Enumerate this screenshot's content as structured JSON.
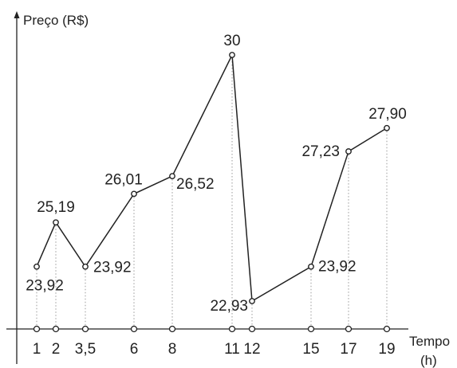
{
  "chart_data": {
    "type": "line",
    "ylabel": "Preço (R$)",
    "xlabel_line1": "Tempo",
    "xlabel_line2": "(h)",
    "x_tick_labels": [
      "1",
      "2",
      "3,5",
      "6",
      "8",
      "11",
      "12",
      "15",
      "17",
      "19"
    ],
    "x": [
      1,
      2,
      3.5,
      6,
      8,
      11,
      12,
      15,
      17,
      19
    ],
    "values": [
      23.92,
      25.19,
      23.92,
      26.01,
      26.52,
      30,
      22.93,
      23.92,
      27.23,
      27.9
    ],
    "value_labels": [
      "23,92",
      "25,19",
      "23,92",
      "26,01",
      "26,52",
      "30",
      "22,93",
      "23,92",
      "27,23",
      "27,90"
    ],
    "grid": false,
    "guide_lines": "dotted vertical from each point to x-axis",
    "colors": {
      "line": "#222222",
      "guide": "#999999",
      "axis": "#222222"
    }
  }
}
